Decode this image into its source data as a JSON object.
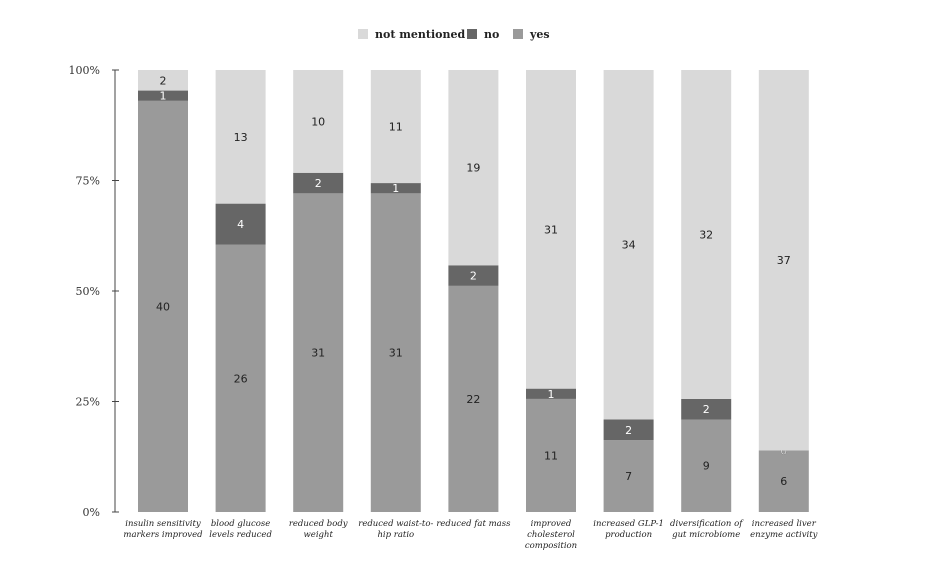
{
  "chart_data": {
    "type": "bar",
    "stacked": true,
    "percent": true,
    "legend_position": "top-center",
    "grid": false,
    "ylim": [
      0,
      100
    ],
    "yticks": [
      "0%",
      "25%",
      "50%",
      "75%",
      "100%"
    ],
    "categories": [
      [
        "insulin sensitivity",
        "markers improved"
      ],
      [
        "blood glucose",
        "levels reduced"
      ],
      [
        "reduced body",
        "weight"
      ],
      [
        "reduced waist-to-",
        "hip ratio"
      ],
      [
        "reduced fat mass"
      ],
      [
        "improved",
        "cholesterol",
        "composition"
      ],
      [
        "increased GLP-1",
        "production"
      ],
      [
        "diversification of",
        "gut microbiome"
      ],
      [
        "increased liver",
        "enzyme activity"
      ]
    ],
    "series": [
      {
        "name": "yes",
        "color": "#9a9a9a",
        "text_color": "#222222",
        "values": [
          40,
          26,
          31,
          31,
          22,
          11,
          7,
          9,
          6
        ]
      },
      {
        "name": "no",
        "color": "#666666",
        "text_color": "#ffffff",
        "values": [
          1,
          4,
          2,
          1,
          2,
          1,
          2,
          2,
          0
        ]
      },
      {
        "name": "not mentioned",
        "color": "#d9d9d9",
        "text_color": "#222222",
        "values": [
          2,
          13,
          10,
          11,
          19,
          31,
          34,
          32,
          37
        ]
      }
    ],
    "legend_order": [
      "not mentioned",
      "no",
      "yes"
    ]
  }
}
